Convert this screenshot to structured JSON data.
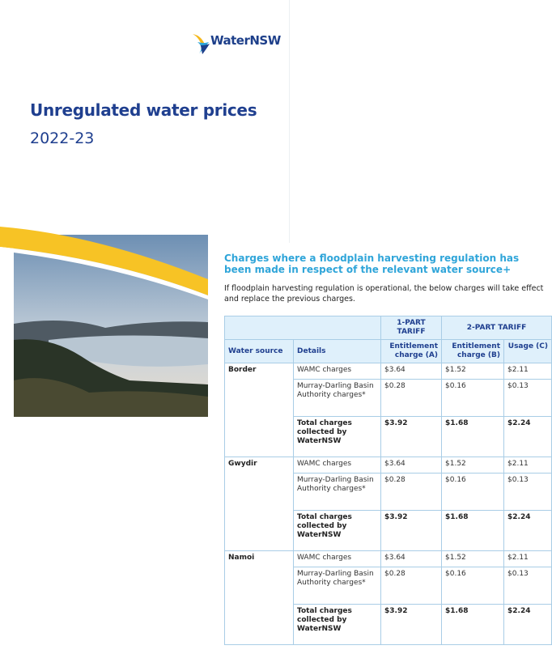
{
  "logo": "WaterNSW",
  "title": "Unregulated water prices",
  "subtitle": "2022-23",
  "section": {
    "heading": "Charges where a floodplain harvesting regulation has been made in respect of the relevant water source+",
    "intro": "If floodplain harvesting regulation is operational, the below charges will take effect and replace the previous charges."
  },
  "table": {
    "header_groups": [
      "1-PART TARIFF",
      "2-PART TARIFF"
    ],
    "columns": [
      "Water source",
      "Details",
      "Entitlement charge (A)",
      "Entitlement charge (B)",
      "Usage (C)"
    ],
    "groups": [
      {
        "source": "Border",
        "rows": [
          [
            "WAMC charges",
            "$3.64",
            "$1.52",
            "$2.11"
          ],
          [
            "Murray-Darling Basin Authority charges*",
            "$0.28",
            "$0.16",
            "$0.13"
          ],
          [
            "Total charges collected by WaterNSW",
            "$3.92",
            "$1.68",
            "$2.24"
          ]
        ]
      },
      {
        "source": "Gwydir",
        "rows": [
          [
            "WAMC charges",
            "$3.64",
            "$1.52",
            "$2.11"
          ],
          [
            "Murray-Darling Basin Authority charges*",
            "$0.28",
            "$0.16",
            "$0.13"
          ],
          [
            "Total charges collected by WaterNSW",
            "$3.92",
            "$1.68",
            "$2.24"
          ]
        ]
      },
      {
        "source": "Namoi",
        "rows": [
          [
            "WAMC charges",
            "$3.64",
            "$1.52",
            "$2.11"
          ],
          [
            "Murray-Darling Basin Authority charges*",
            "$0.28",
            "$0.16",
            "$0.13"
          ],
          [
            "Total charges collected by WaterNSW",
            "$3.92",
            "$1.68",
            "$2.24"
          ]
        ]
      }
    ]
  }
}
